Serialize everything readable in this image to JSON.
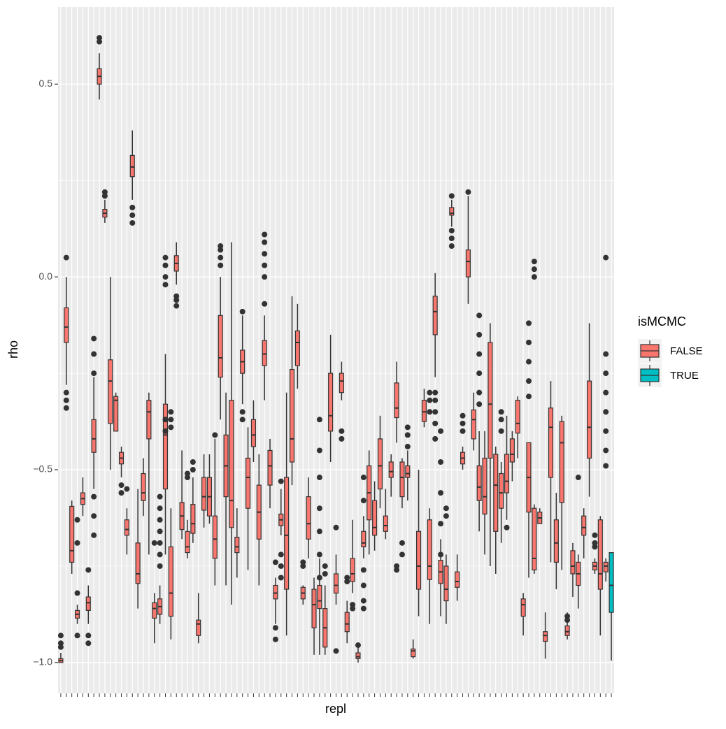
{
  "chart_data": {
    "type": "boxplot",
    "x_label": "repl",
    "y_label": "rho",
    "ylim": [
      -1.08,
      0.7
    ],
    "yticks": [
      {
        "value": -1.0,
        "label": "−1.0"
      },
      {
        "value": -0.5,
        "label": "−0.5"
      },
      {
        "value": 0.0,
        "label": "0.0"
      },
      {
        "value": 0.5,
        "label": "0.5"
      }
    ],
    "yminor": [
      -0.75,
      -0.25,
      0.25
    ],
    "grid": true,
    "legend_title": "isMCMC",
    "legend_position": "right",
    "series": [
      {
        "name": "FALSE",
        "color": "#F8766D",
        "boxes": [
          [
            -1.0,
            -1.0,
            -0.995,
            -0.99,
            -0.975
          ],
          [
            -0.28,
            -0.17,
            -0.13,
            -0.08,
            0.0
          ],
          [
            -0.77,
            -0.74,
            -0.71,
            -0.595,
            -0.58
          ],
          [
            -0.9,
            -0.885,
            -0.875,
            -0.865,
            -0.85
          ],
          [
            -0.62,
            -0.59,
            -0.575,
            -0.56,
            -0.52
          ],
          [
            -0.9,
            -0.865,
            -0.845,
            -0.83,
            -0.8
          ],
          [
            -0.55,
            -0.455,
            -0.42,
            -0.37,
            -0.26
          ],
          [
            0.46,
            0.5,
            0.52,
            0.54,
            0.58
          ],
          [
            0.14,
            0.155,
            0.165,
            0.175,
            0.2
          ],
          [
            -0.5,
            -0.38,
            -0.27,
            -0.215,
            0.0
          ],
          [
            -0.4,
            -0.4,
            -0.32,
            -0.31,
            -0.3
          ],
          [
            -0.52,
            -0.485,
            -0.47,
            -0.455,
            -0.44
          ],
          [
            -0.72,
            -0.67,
            -0.655,
            -0.63,
            -0.6
          ],
          [
            0.2,
            0.26,
            0.285,
            0.315,
            0.38
          ],
          [
            -0.86,
            -0.795,
            -0.77,
            -0.69,
            -0.55
          ],
          [
            -0.62,
            -0.58,
            -0.56,
            -0.51,
            -0.47
          ],
          [
            -0.72,
            -0.42,
            -0.35,
            -0.32,
            -0.3
          ],
          [
            -0.95,
            -0.885,
            -0.86,
            -0.845,
            -0.82
          ],
          [
            -0.9,
            -0.875,
            -0.855,
            -0.835,
            -0.8
          ],
          [
            -0.72,
            -0.55,
            -0.41,
            -0.33,
            -0.2
          ],
          [
            -0.94,
            -0.88,
            -0.82,
            -0.7,
            -0.6
          ],
          [
            -0.02,
            0.015,
            0.035,
            0.055,
            0.09
          ],
          [
            -0.68,
            -0.655,
            -0.62,
            -0.585,
            -0.45
          ],
          [
            -0.73,
            -0.715,
            -0.7,
            -0.66,
            -0.63
          ],
          [
            -0.69,
            -0.665,
            -0.64,
            -0.59,
            -0.52
          ],
          [
            -0.95,
            -0.93,
            -0.9,
            -0.89,
            -0.82
          ],
          [
            -0.65,
            -0.605,
            -0.57,
            -0.52,
            -0.46
          ],
          [
            -0.64,
            -0.62,
            -0.57,
            -0.52,
            -0.46
          ],
          [
            -0.8,
            -0.73,
            -0.68,
            -0.62,
            -0.42
          ],
          [
            -0.37,
            -0.26,
            -0.21,
            -0.1,
            0.0
          ],
          [
            -0.8,
            -0.57,
            -0.49,
            -0.41,
            -0.3
          ],
          [
            -0.85,
            -0.65,
            -0.58,
            -0.32,
            0.09
          ],
          [
            -0.78,
            -0.715,
            -0.7,
            -0.675,
            -0.6
          ],
          [
            -0.33,
            -0.25,
            -0.22,
            -0.19,
            -0.1
          ],
          [
            -0.76,
            -0.6,
            -0.52,
            -0.47,
            -0.39
          ],
          [
            -0.48,
            -0.44,
            -0.41,
            -0.37,
            -0.32
          ],
          [
            -0.8,
            -0.68,
            -0.61,
            -0.54,
            -0.46
          ],
          [
            -0.32,
            -0.23,
            -0.2,
            -0.165,
            -0.1
          ],
          [
            -0.6,
            -0.54,
            -0.49,
            -0.45,
            -0.42
          ],
          [
            -0.9,
            -0.835,
            -0.82,
            -0.8,
            -0.78
          ],
          [
            -0.67,
            -0.645,
            -0.63,
            -0.615,
            -0.55
          ],
          [
            -0.93,
            -0.81,
            -0.67,
            -0.52,
            -0.3
          ],
          [
            -0.54,
            -0.48,
            -0.42,
            -0.24,
            -0.05
          ],
          [
            -0.29,
            -0.23,
            -0.17,
            -0.14,
            -0.07
          ],
          [
            -0.85,
            -0.835,
            -0.82,
            -0.805,
            -0.8
          ],
          [
            -0.73,
            -0.68,
            -0.64,
            -0.57,
            -0.52
          ],
          [
            -0.98,
            -0.91,
            -0.85,
            -0.81,
            -0.78
          ],
          [
            -0.98,
            -0.86,
            -0.84,
            -0.8,
            -0.73
          ],
          [
            -0.98,
            -0.96,
            -0.91,
            -0.86,
            -0.8
          ],
          [
            -0.48,
            -0.4,
            -0.36,
            -0.25,
            -0.15
          ],
          [
            -0.85,
            -0.82,
            -0.8,
            -0.77,
            -0.72
          ],
          [
            -0.32,
            -0.3,
            -0.27,
            -0.25,
            -0.22
          ],
          [
            -0.95,
            -0.92,
            -0.9,
            -0.87,
            -0.84
          ],
          [
            -0.82,
            -0.79,
            -0.77,
            -0.73,
            -0.63
          ],
          [
            -1.0,
            -0.99,
            -0.985,
            -0.975,
            -0.96
          ],
          [
            -0.73,
            -0.7,
            -0.69,
            -0.66,
            -0.62
          ],
          [
            -0.72,
            -0.63,
            -0.56,
            -0.49,
            -0.45
          ],
          [
            -0.71,
            -0.67,
            -0.65,
            -0.58,
            -0.53
          ],
          [
            -0.6,
            -0.55,
            -0.49,
            -0.42,
            -0.36
          ],
          [
            -0.68,
            -0.66,
            -0.645,
            -0.62,
            -0.55
          ],
          [
            -0.57,
            -0.52,
            -0.505,
            -0.48,
            -0.46
          ],
          [
            -0.43,
            -0.365,
            -0.34,
            -0.275,
            -0.22
          ],
          [
            -0.6,
            -0.57,
            -0.52,
            -0.48,
            -0.47
          ],
          [
            -0.58,
            -0.52,
            -0.51,
            -0.49,
            -0.45
          ],
          [
            -0.99,
            -0.985,
            -0.97,
            -0.965,
            -0.94
          ],
          [
            -0.88,
            -0.81,
            -0.75,
            -0.66,
            -0.5
          ],
          [
            -0.39,
            -0.375,
            -0.35,
            -0.32,
            -0.29
          ],
          [
            -0.9,
            -0.785,
            -0.75,
            -0.63,
            -0.6
          ],
          [
            -0.26,
            -0.15,
            -0.09,
            -0.05,
            0.01
          ],
          [
            -0.88,
            -0.795,
            -0.765,
            -0.735,
            -0.68
          ],
          [
            -0.9,
            -0.84,
            -0.81,
            -0.75,
            -0.72
          ],
          [
            0.13,
            0.16,
            0.165,
            0.18,
            0.2
          ],
          [
            -0.84,
            -0.805,
            -0.79,
            -0.765,
            -0.72
          ],
          [
            -0.5,
            -0.485,
            -0.47,
            -0.455,
            -0.44
          ],
          [
            -0.07,
            0.0,
            0.04,
            0.07,
            0.21
          ],
          [
            -0.45,
            -0.42,
            -0.37,
            -0.345,
            -0.3
          ],
          [
            -0.66,
            -0.58,
            -0.545,
            -0.49,
            -0.4
          ],
          [
            -0.72,
            -0.615,
            -0.57,
            -0.47,
            -0.4
          ],
          [
            -0.75,
            -0.47,
            -0.33,
            -0.17,
            -0.12
          ],
          [
            -0.77,
            -0.66,
            -0.54,
            -0.46,
            -0.44
          ],
          [
            -0.69,
            -0.6,
            -0.56,
            -0.51,
            -0.48
          ],
          [
            -0.63,
            -0.56,
            -0.53,
            -0.46,
            -0.36
          ],
          [
            -0.53,
            -0.48,
            -0.46,
            -0.42,
            -0.4
          ],
          [
            -0.47,
            -0.405,
            -0.38,
            -0.32,
            -0.31
          ],
          [
            -0.93,
            -0.88,
            -0.85,
            -0.835,
            -0.82
          ],
          [
            -0.78,
            -0.61,
            -0.52,
            -0.43,
            -0.43
          ],
          [
            -0.77,
            -0.76,
            -0.73,
            -0.6,
            -0.59
          ],
          [
            -0.64,
            -0.64,
            -0.625,
            -0.61,
            -0.6
          ],
          [
            -0.99,
            -0.945,
            -0.93,
            -0.92,
            -0.87
          ],
          [
            -0.74,
            -0.52,
            -0.39,
            -0.34,
            -0.27
          ],
          [
            -0.81,
            -0.74,
            -0.69,
            -0.63,
            -0.56
          ],
          [
            -0.76,
            -0.585,
            -0.43,
            -0.375,
            -0.36
          ],
          [
            -0.94,
            -0.93,
            -0.92,
            -0.905,
            -0.87
          ],
          [
            -0.83,
            -0.77,
            -0.75,
            -0.71,
            -0.69
          ],
          [
            -0.86,
            -0.8,
            -0.77,
            -0.74,
            -0.72
          ],
          [
            -0.73,
            -0.67,
            -0.65,
            -0.62,
            -0.6
          ],
          [
            -0.57,
            -0.47,
            -0.39,
            -0.27,
            -0.12
          ],
          [
            -0.77,
            -0.76,
            -0.75,
            -0.74,
            -0.73
          ],
          [
            -0.93,
            -0.81,
            -0.77,
            -0.63,
            -0.62
          ],
          [
            -0.79,
            -0.765,
            -0.75,
            -0.74,
            -0.73
          ],
          null
        ],
        "outliers": [
          [
            -0.93,
            -0.95,
            -0.96
          ],
          [
            0.05,
            -0.3,
            -0.32,
            -0.34
          ],
          [],
          [
            -0.63,
            -0.69,
            -0.82,
            -0.93
          ],
          [],
          [
            -0.76,
            -0.93,
            -0.95
          ],
          [
            -0.16,
            -0.2,
            -0.25,
            -0.57,
            -0.62,
            -0.67
          ],
          [
            0.61,
            0.62
          ],
          [
            0.21,
            0.22
          ],
          [],
          [],
          [
            -0.54,
            -0.56
          ],
          [
            -0.55
          ],
          [
            0.18,
            0.16,
            0.14
          ],
          [],
          [],
          [],
          [
            -0.69
          ],
          [
            -0.57,
            -0.6,
            -0.63,
            -0.66,
            -0.69,
            -0.72,
            -0.75
          ],
          [
            0.05,
            0.03,
            0.0,
            -0.02,
            -0.37,
            -0.4
          ],
          [
            -0.35,
            -0.37,
            -0.39
          ],
          [
            -0.05,
            -0.06,
            -0.075
          ],
          [],
          [
            -0.51,
            -0.52
          ],
          [
            -0.48,
            -0.5
          ],
          [],
          [],
          [],
          [
            -0.41
          ],
          [
            0.03,
            0.05,
            0.07,
            0.08
          ],
          [],
          [],
          [],
          [
            -0.09,
            -0.35,
            -0.37
          ],
          [],
          [],
          [],
          [
            -0.07,
            0.0,
            0.03,
            0.06,
            0.09,
            0.11
          ],
          [],
          [
            -0.94,
            -0.91,
            -0.74
          ],
          [
            -0.53,
            -0.72,
            -0.75,
            -0.78
          ],
          [],
          [],
          [],
          [
            -0.74,
            -0.75
          ],
          [],
          [],
          [
            -0.37,
            -0.45,
            -0.52,
            -0.6,
            -0.66,
            -0.72,
            -0.78
          ],
          [
            -0.75,
            -0.77
          ],
          [],
          [
            -0.65,
            -0.97
          ],
          [
            -0.4,
            -0.42
          ],
          [
            -0.79,
            -0.78
          ],
          [
            -0.85,
            -0.86
          ],
          [
            -0.955
          ],
          [
            -0.52,
            -0.58,
            -0.76,
            -0.8,
            -0.84,
            -0.86
          ],
          [],
          [],
          [],
          [],
          [],
          [
            -0.75,
            -0.76
          ],
          [
            -0.69,
            -0.72
          ],
          [
            -0.39,
            -0.41,
            -0.44
          ],
          [],
          [],
          [],
          [
            -0.3,
            -0.32,
            -0.35
          ],
          [
            -0.3,
            -0.32,
            -0.35,
            -0.38,
            -0.42
          ],
          [
            -0.4,
            -0.48,
            -0.56,
            -0.64,
            -0.72
          ],
          [
            -0.6,
            -0.62
          ],
          [
            0.08,
            0.1,
            0.12,
            0.21
          ],
          [],
          [
            -0.36,
            -0.38,
            -0.4
          ],
          [
            0.22
          ],
          [],
          [
            -0.1,
            -0.15,
            -0.2,
            -0.25,
            -0.3,
            -0.33
          ],
          [],
          [],
          [],
          [
            -0.35,
            -0.37,
            -0.4
          ],
          [
            -0.65
          ],
          [],
          [],
          [],
          [
            -0.12,
            -0.17,
            -0.22,
            -0.27,
            -0.31
          ],
          [
            0.04,
            0.02,
            0.0
          ],
          [],
          [],
          [],
          [],
          [],
          [
            -0.88,
            -0.89
          ],
          [],
          [
            -0.52
          ],
          [],
          [],
          [
            -0.67,
            -0.69,
            -0.7
          ],
          [],
          [
            0.05,
            -0.2,
            -0.25,
            -0.3,
            -0.35,
            -0.4,
            -0.45,
            -0.49
          ],
          null
        ]
      },
      {
        "name": "TRUE",
        "color": "#00BFC4",
        "boxes": [
          null,
          null,
          null,
          null,
          null,
          null,
          null,
          null,
          null,
          null,
          null,
          null,
          null,
          null,
          null,
          null,
          null,
          null,
          null,
          null,
          null,
          null,
          null,
          null,
          null,
          null,
          null,
          null,
          null,
          null,
          null,
          null,
          null,
          null,
          null,
          null,
          null,
          null,
          null,
          null,
          null,
          null,
          null,
          null,
          null,
          null,
          null,
          null,
          null,
          null,
          null,
          null,
          null,
          null,
          null,
          null,
          null,
          null,
          null,
          null,
          null,
          null,
          null,
          null,
          null,
          null,
          null,
          null,
          null,
          null,
          null,
          null,
          null,
          null,
          null,
          null,
          null,
          null,
          null,
          null,
          null,
          null,
          null,
          null,
          null,
          null,
          null,
          null,
          null,
          null,
          null,
          null,
          null,
          null,
          null,
          null,
          null,
          null,
          null,
          null,
          [
            -0.995,
            -0.87,
            -0.8,
            -0.715,
            -0.715
          ]
        ]
      }
    ]
  }
}
